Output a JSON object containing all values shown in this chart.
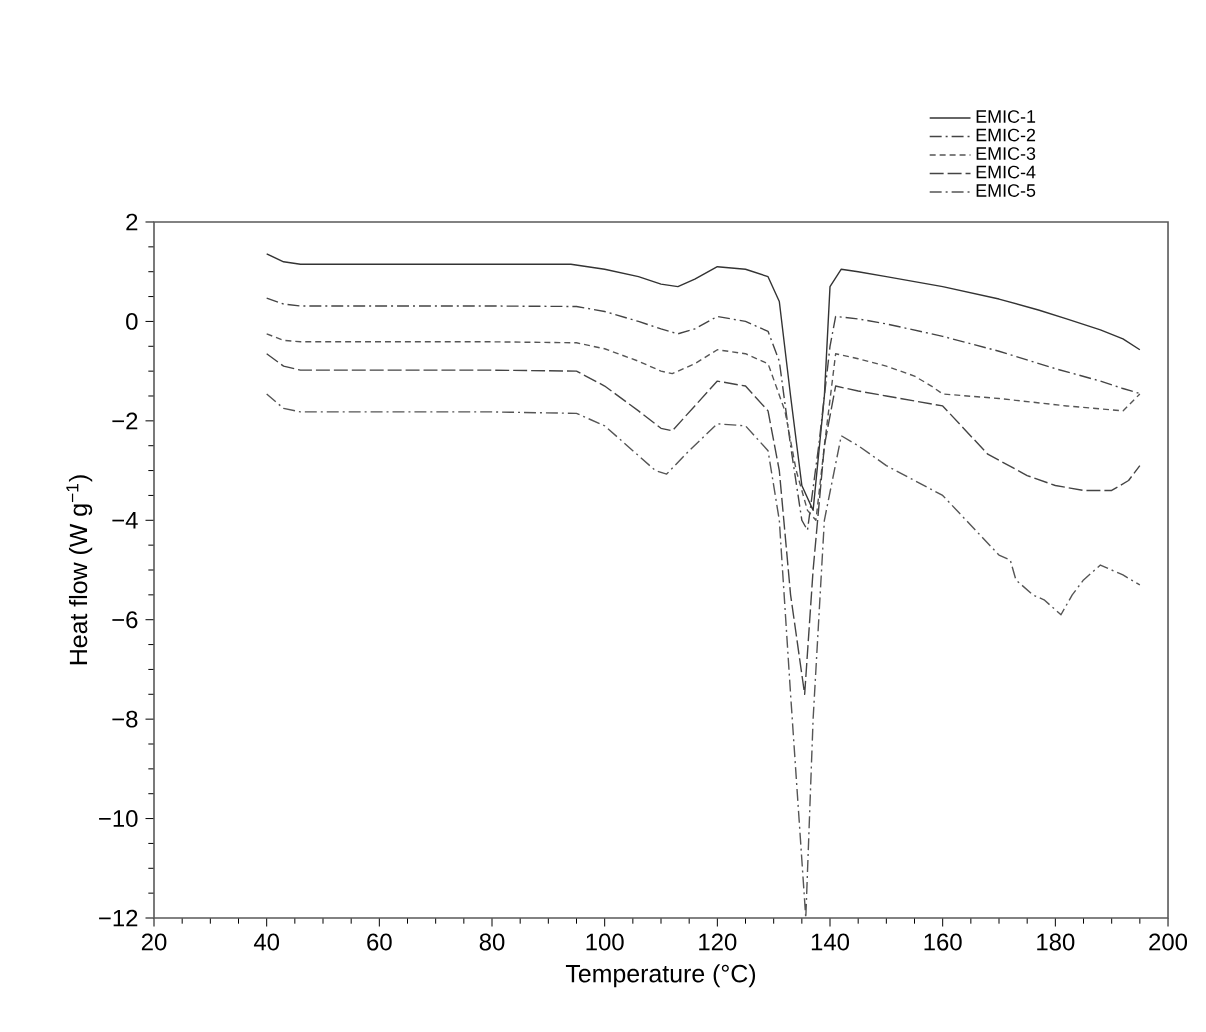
{
  "chart_data": {
    "type": "line",
    "xlabel": "Temperature (°C)",
    "ylabel": "Heat flow (W g$^{−1}$)",
    "xlim": [
      20,
      200
    ],
    "xticks": [
      20,
      40,
      60,
      80,
      100,
      120,
      140,
      160,
      180,
      200
    ],
    "ylim": [
      -12,
      2
    ],
    "yticks": [
      {
        "value": -12,
        "label": "−12"
      },
      {
        "value": -10,
        "label": "−10"
      },
      {
        "value": -8,
        "label": "−8"
      },
      {
        "value": -6,
        "label": "−6"
      },
      {
        "value": -4,
        "label": "−4"
      },
      {
        "value": -2,
        "label": "−2"
      },
      0,
      2
    ],
    "legend": "top right",
    "grid": false,
    "marker": "none",
    "series": [
      {
        "name": "EMIC-1",
        "color": "#333333",
        "line_style": "solid",
        "x": [
          40,
          43,
          46,
          60,
          80,
          94,
          100,
          106,
          110,
          113,
          116,
          120,
          125,
          129,
          131,
          133,
          135,
          137,
          139,
          140,
          142,
          145,
          150,
          160,
          170,
          177,
          182,
          188,
          192,
          195
        ],
        "values": [
          1.36,
          1.2,
          1.15,
          1.15,
          1.15,
          1.15,
          1.05,
          0.9,
          0.75,
          0.7,
          0.85,
          1.1,
          1.05,
          0.9,
          0.4,
          -1.5,
          -3.3,
          -3.8,
          -1.5,
          0.7,
          1.05,
          1.0,
          0.9,
          0.7,
          0.45,
          0.23,
          0.05,
          -0.17,
          -0.35,
          -0.57
        ]
      },
      {
        "name": "EMIC-2",
        "color": "#444444",
        "line_style": "dashdot",
        "x": [
          40,
          43,
          46,
          60,
          80,
          95,
          100,
          106,
          110,
          113,
          116,
          120,
          125,
          129,
          131,
          133,
          135,
          136,
          138,
          140,
          141,
          145,
          150,
          160,
          170,
          180,
          188,
          192,
          195
        ],
        "values": [
          0.47,
          0.35,
          0.31,
          0.31,
          0.31,
          0.3,
          0.2,
          0.0,
          -0.15,
          -0.25,
          -0.15,
          0.1,
          0.0,
          -0.2,
          -0.8,
          -2.5,
          -4.0,
          -4.2,
          -2.5,
          -0.5,
          0.1,
          0.05,
          -0.05,
          -0.3,
          -0.6,
          -0.95,
          -1.2,
          -1.35,
          -1.45
        ]
      },
      {
        "name": "EMIC-3",
        "color": "#555555",
        "line_style": "dashed",
        "x": [
          40,
          43,
          46,
          60,
          80,
          95,
          100,
          106,
          110,
          112,
          116,
          120,
          125,
          129,
          132,
          134,
          136,
          137.5,
          139,
          141,
          145,
          150,
          155,
          158,
          160,
          170,
          182,
          192,
          195
        ],
        "values": [
          -0.25,
          -0.38,
          -0.41,
          -0.41,
          -0.41,
          -0.43,
          -0.55,
          -0.8,
          -1.0,
          -1.05,
          -0.85,
          -0.57,
          -0.65,
          -0.85,
          -1.8,
          -3.0,
          -3.8,
          -4.0,
          -2.5,
          -0.65,
          -0.75,
          -0.9,
          -1.1,
          -1.3,
          -1.46,
          -1.55,
          -1.7,
          -1.8,
          -1.46
        ]
      },
      {
        "name": "EMIC-4",
        "color": "#444444",
        "line_style": "longdashed",
        "x": [
          40,
          43,
          46,
          60,
          80,
          95,
          100,
          106,
          110,
          112,
          116,
          120,
          125,
          129,
          131,
          133,
          135.5,
          137,
          139,
          141,
          145,
          150,
          160,
          168,
          175,
          180,
          185,
          190,
          193,
          195
        ],
        "values": [
          -0.65,
          -0.9,
          -0.98,
          -0.98,
          -0.98,
          -1.0,
          -1.3,
          -1.8,
          -2.15,
          -2.2,
          -1.7,
          -1.2,
          -1.3,
          -1.8,
          -3.0,
          -5.5,
          -7.5,
          -5.0,
          -2.5,
          -1.3,
          -1.4,
          -1.5,
          -1.7,
          -2.67,
          -3.1,
          -3.3,
          -3.4,
          -3.4,
          -3.2,
          -2.9
        ]
      },
      {
        "name": "EMIC-5",
        "color": "#555555",
        "line_style": "dashdot",
        "x": [
          40,
          43,
          46,
          60,
          80,
          95,
          100,
          105,
          109,
          111,
          115,
          120,
          125,
          129,
          131,
          133,
          135.7,
          137,
          139,
          142,
          145,
          150,
          160,
          165,
          170,
          172,
          173,
          176,
          178,
          181,
          183,
          185,
          188,
          190,
          192,
          195
        ],
        "values": [
          -1.46,
          -1.75,
          -1.82,
          -1.82,
          -1.82,
          -1.85,
          -2.1,
          -2.6,
          -3.0,
          -3.07,
          -2.6,
          -2.06,
          -2.1,
          -2.6,
          -4.0,
          -7.5,
          -12.0,
          -8.0,
          -4.0,
          -2.3,
          -2.5,
          -2.9,
          -3.5,
          -4.1,
          -4.7,
          -4.8,
          -5.2,
          -5.5,
          -5.6,
          -5.9,
          -5.5,
          -5.2,
          -4.9,
          -5.0,
          -5.1,
          -5.3
        ]
      }
    ]
  }
}
